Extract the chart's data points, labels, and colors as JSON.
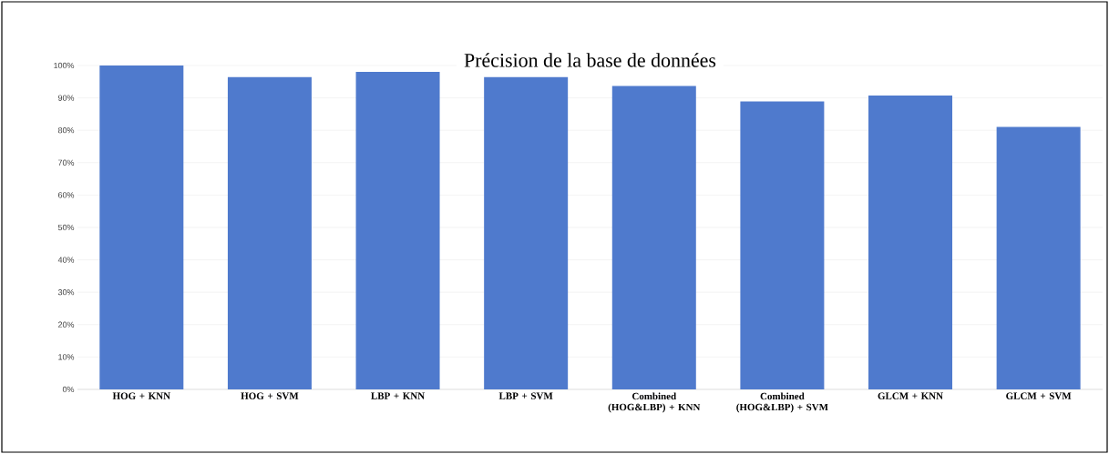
{
  "chart_data": {
    "type": "bar",
    "title": "Précision de la base de données",
    "categories": [
      "HOG + KNN",
      "HOG + SVM",
      "LBP + KNN",
      "LBP + SVM",
      "Combined (HOG&LBP) + KNN",
      "Combined (HOG&LBP) + SVM",
      "GLCM + KNN",
      "GLCM + SVM"
    ],
    "values": [
      100,
      96.4,
      98,
      96.4,
      93.7,
      88.9,
      90.7,
      81
    ],
    "color": "#4f7acd",
    "ylim": [
      0,
      100
    ],
    "yticks": [
      {
        "value": 0,
        "label": "0%"
      },
      {
        "value": 10,
        "label": "10%"
      },
      {
        "value": 20,
        "label": "20%"
      },
      {
        "value": 30,
        "label": "30%"
      },
      {
        "value": 40,
        "label": "40%"
      },
      {
        "value": 50,
        "label": "50%"
      },
      {
        "value": 60,
        "label": "60%"
      },
      {
        "value": 70,
        "label": "70%"
      },
      {
        "value": 80,
        "label": "80%"
      },
      {
        "value": 90,
        "label": "90%"
      },
      {
        "value": 100,
        "label": "100%"
      }
    ],
    "grid": "y"
  }
}
